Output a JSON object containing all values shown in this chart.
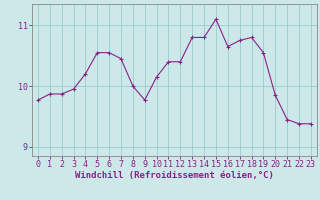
{
  "x": [
    0,
    1,
    2,
    3,
    4,
    5,
    6,
    7,
    8,
    9,
    10,
    11,
    12,
    13,
    14,
    15,
    16,
    17,
    18,
    19,
    20,
    21,
    22,
    23
  ],
  "y": [
    9.77,
    9.87,
    9.87,
    9.95,
    10.2,
    10.55,
    10.55,
    10.45,
    10.0,
    9.77,
    10.15,
    10.4,
    10.4,
    10.8,
    10.8,
    11.1,
    10.65,
    10.75,
    10.8,
    10.55,
    9.85,
    9.45,
    9.38,
    9.38
  ],
  "line_color": "#882288",
  "marker": "+",
  "bg_color": "#cce8e8",
  "grid_color": "#99cccc",
  "xlabel": "Windchill (Refroidissement éolien,°C)",
  "xlim": [
    -0.5,
    23.5
  ],
  "ylim": [
    8.85,
    11.35
  ],
  "yticks": [
    9,
    10,
    11
  ],
  "font_color": "#882288",
  "spine_color": "#888888",
  "label_fontsize": 6.5,
  "tick_fontsize": 6
}
